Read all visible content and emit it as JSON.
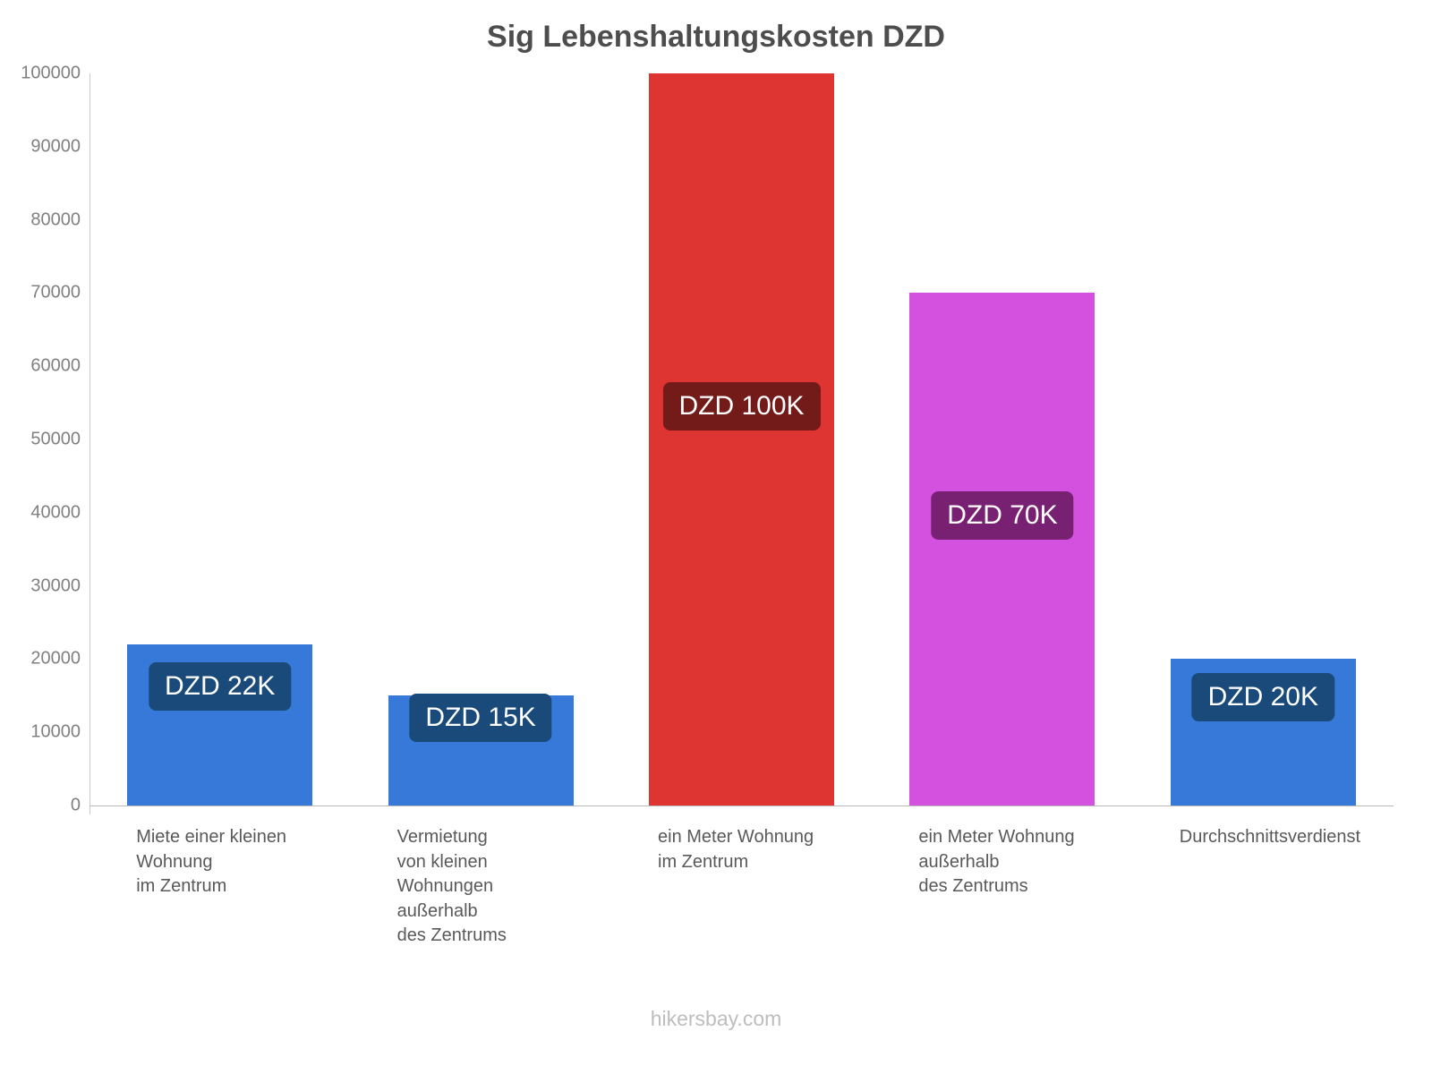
{
  "page": {
    "title": "Sig Lebenshaltungskosten DZD",
    "footer": "hikersbay.com"
  },
  "chart_data": {
    "type": "bar",
    "title": "Sig Lebenshaltungskosten DZD",
    "xlabel": "",
    "ylabel": "",
    "ylim": [
      0,
      100000
    ],
    "ytick_step": 10000,
    "grid": false,
    "legend": false,
    "categories": [
      "Miete einer kleinen Wohnung im Zentrum",
      "Vermietung von kleinen Wohnungen außerhalb des Zentrums",
      "ein Meter Wohnung im Zentrum",
      "ein Meter Wohnung außerhalb des Zentrums",
      "Durchschnittsverdienst"
    ],
    "bars": [
      {
        "category_lines": [
          "Miete einer kleinen",
          "Wohnung",
          "im Zentrum"
        ],
        "value": 22000,
        "label": "DZD 22K",
        "bar_color": "#3779d9",
        "label_bg": "#1a4a7a",
        "label_center_value": 16200
      },
      {
        "category_lines": [
          "Vermietung",
          "von kleinen",
          "Wohnungen",
          "außerhalb",
          "des Zentrums"
        ],
        "value": 15000,
        "label": "DZD 15K",
        "bar_color": "#3779d9",
        "label_bg": "#1a4a7a",
        "label_center_value": 12000
      },
      {
        "category_lines": [
          "ein Meter Wohnung",
          "im Zentrum"
        ],
        "value": 100000,
        "label": "DZD 100K",
        "bar_color": "#de3432",
        "label_bg": "#731b18",
        "label_center_value": 54500
      },
      {
        "category_lines": [
          "ein Meter Wohnung",
          "außerhalb",
          "des Zentrums"
        ],
        "value": 70000,
        "label": "DZD 70K",
        "bar_color": "#d450de",
        "label_bg": "#782173",
        "label_center_value": 39600
      },
      {
        "category_lines": [
          "Durchschnittsverdienst"
        ],
        "value": 20000,
        "label": "DZD 20K",
        "bar_color": "#3779d9",
        "label_bg": "#1a4a7a",
        "label_center_value": 14800
      }
    ]
  }
}
